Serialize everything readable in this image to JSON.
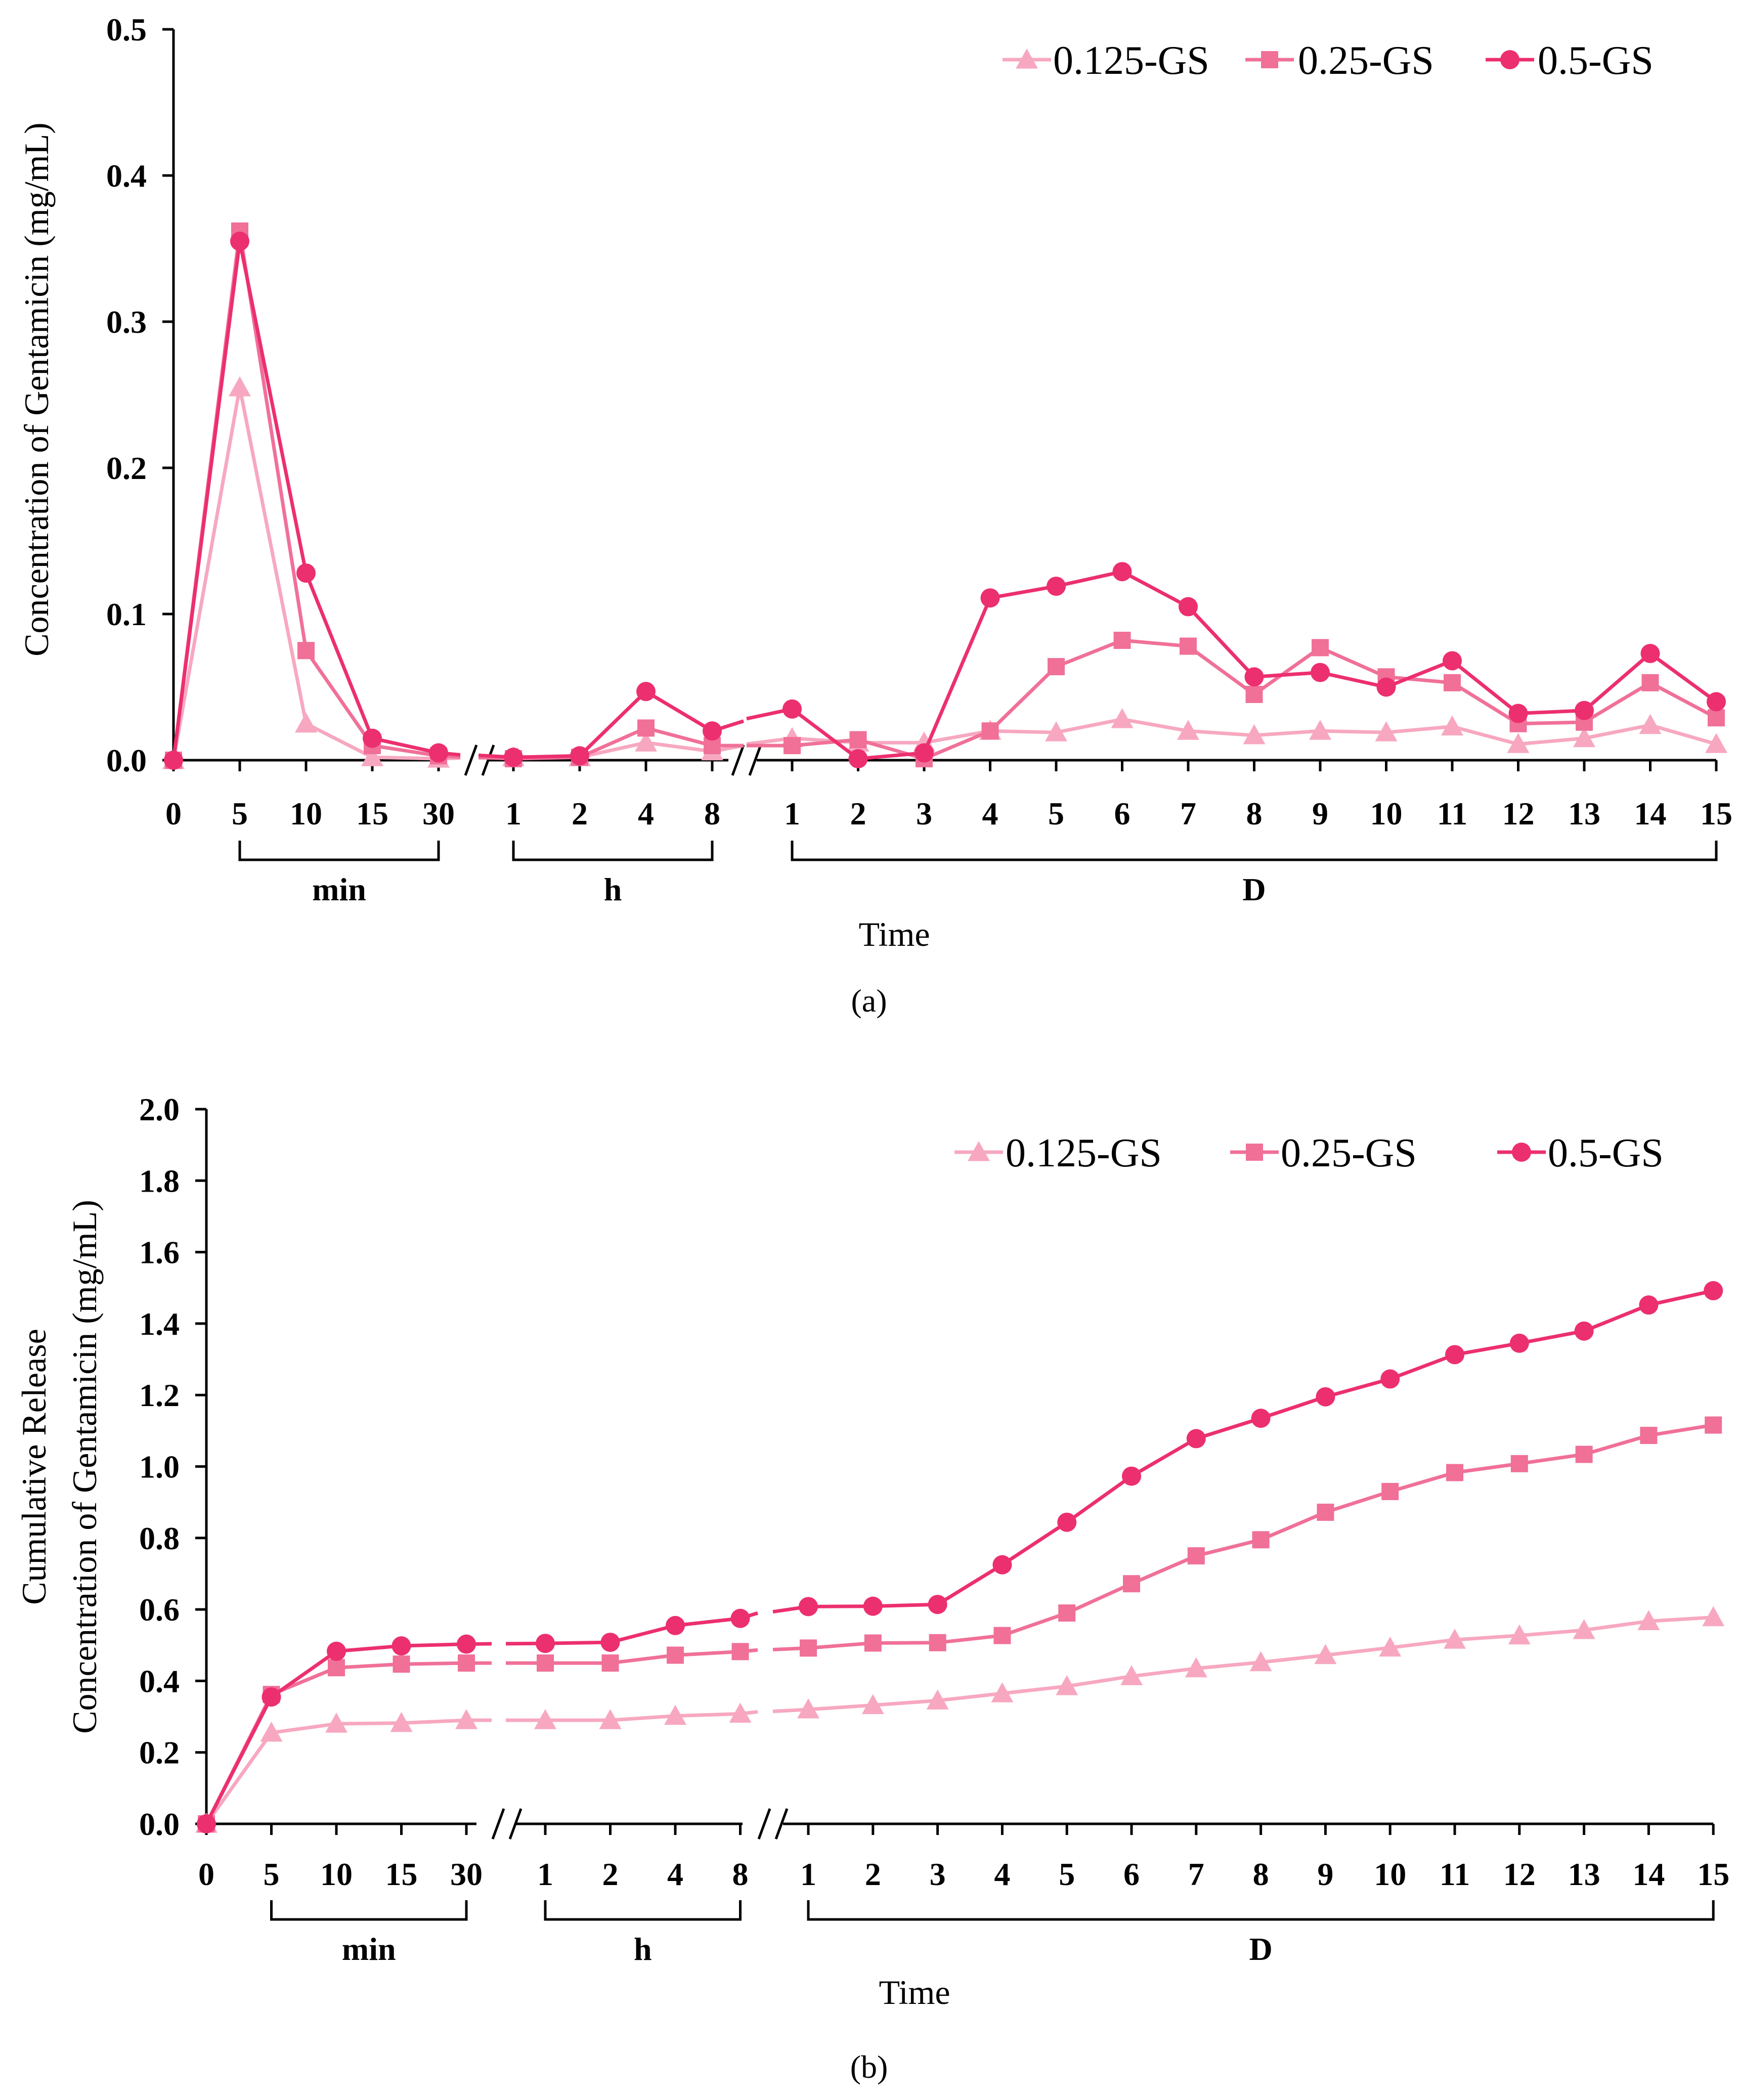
{
  "chart_data": [
    {
      "id": "a",
      "type": "line",
      "caption": "(a)",
      "xlabel": "Time",
      "ylabel": "Concentration of Gentamicin (mg/mL)",
      "ylim": [
        0,
        0.5
      ],
      "yticks": [
        "0.0",
        "0.1",
        "0.2",
        "0.3",
        "0.4",
        "0.5"
      ],
      "segments": [
        {
          "label": "min",
          "ticks": [
            "0",
            "5",
            "10",
            "15",
            "30"
          ]
        },
        {
          "label": "h",
          "ticks": [
            "1",
            "2",
            "4",
            "8"
          ]
        },
        {
          "label": "D",
          "ticks": [
            "1",
            "2",
            "3",
            "4",
            "5",
            "6",
            "7",
            "8",
            "9",
            "10",
            "11",
            "12",
            "13",
            "14",
            "15"
          ]
        }
      ],
      "series": [
        {
          "name": "0.125-GS",
          "marker": "triangle",
          "color": "#F7A8C0",
          "values": [
            [
              0,
              0.255,
              0.025,
              0.002,
              0.001
            ],
            [
              0.002,
              0.002,
              0.012,
              0.006
            ],
            [
              0.015,
              0.012,
              0.012,
              0.02,
              0.019,
              0.028,
              0.02,
              0.017,
              0.02,
              0.019,
              0.023,
              0.011,
              0.015,
              0.024,
              0.011
            ]
          ]
        },
        {
          "name": "0.25-GS",
          "marker": "square",
          "color": "#F07098",
          "values": [
            [
              0,
              0.362,
              0.075,
              0.01,
              0.003
            ],
            [
              0.001,
              0.002,
              0.022,
              0.01
            ],
            [
              0.01,
              0.014,
              0.001,
              0.02,
              0.064,
              0.082,
              0.078,
              0.045,
              0.077,
              0.057,
              0.053,
              0.025,
              0.026,
              0.053,
              0.029
            ]
          ]
        },
        {
          "name": "0.5-GS",
          "marker": "circle",
          "color": "#EC2F6F",
          "values": [
            [
              0,
              0.355,
              0.128,
              0.015,
              0.005
            ],
            [
              0.002,
              0.003,
              0.047,
              0.02
            ],
            [
              0.035,
              0.001,
              0.005,
              0.111,
              0.119,
              0.129,
              0.105,
              0.057,
              0.06,
              0.05,
              0.068,
              0.032,
              0.034,
              0.073,
              0.04
            ]
          ]
        }
      ]
    },
    {
      "id": "b",
      "type": "line",
      "caption": "(b)",
      "xlabel": "Time",
      "ylabel": [
        "Cumulative Release",
        "Concentration of Gentamicin (mg/mL)"
      ],
      "ylim": [
        0,
        2.0
      ],
      "yticks": [
        "0.0",
        "0.2",
        "0.4",
        "0.6",
        "0.8",
        "1.0",
        "1.2",
        "1.4",
        "1.6",
        "1.8",
        "2.0"
      ],
      "segments": [
        {
          "label": "min",
          "ticks": [
            "0",
            "5",
            "10",
            "15",
            "30"
          ]
        },
        {
          "label": "h",
          "ticks": [
            "1",
            "2",
            "4",
            "8"
          ]
        },
        {
          "label": "D",
          "ticks": [
            "1",
            "2",
            "3",
            "4",
            "5",
            "6",
            "7",
            "8",
            "9",
            "10",
            "11",
            "12",
            "13",
            "14",
            "15"
          ]
        }
      ],
      "series": [
        {
          "name": "0.125-GS",
          "marker": "triangle",
          "color": "#F7A8C0",
          "values": [
            [
              0,
              0.255,
              0.28,
              0.282,
              0.29
            ],
            [
              0.29,
              0.29,
              0.302,
              0.308
            ],
            [
              0.32,
              0.332,
              0.345,
              0.365,
              0.385,
              0.413,
              0.435,
              0.452,
              0.472,
              0.493,
              0.515,
              0.527,
              0.542,
              0.567,
              0.578
            ]
          ]
        },
        {
          "name": "0.25-GS",
          "marker": "square",
          "color": "#F07098",
          "values": [
            [
              0,
              0.362,
              0.437,
              0.447,
              0.45
            ],
            [
              0.45,
              0.45,
              0.472,
              0.482
            ],
            [
              0.492,
              0.506,
              0.507,
              0.527,
              0.59,
              0.672,
              0.75,
              0.795,
              0.872,
              0.93,
              0.983,
              1.008,
              1.034,
              1.087,
              1.116
            ]
          ]
        },
        {
          "name": "0.5-GS",
          "marker": "circle",
          "color": "#EC2F6F",
          "values": [
            [
              0,
              0.355,
              0.483,
              0.498,
              0.503
            ],
            [
              0.505,
              0.508,
              0.555,
              0.575
            ],
            [
              0.608,
              0.609,
              0.614,
              0.725,
              0.844,
              0.973,
              1.078,
              1.135,
              1.195,
              1.245,
              1.313,
              1.345,
              1.379,
              1.452,
              1.492
            ]
          ]
        }
      ]
    }
  ]
}
